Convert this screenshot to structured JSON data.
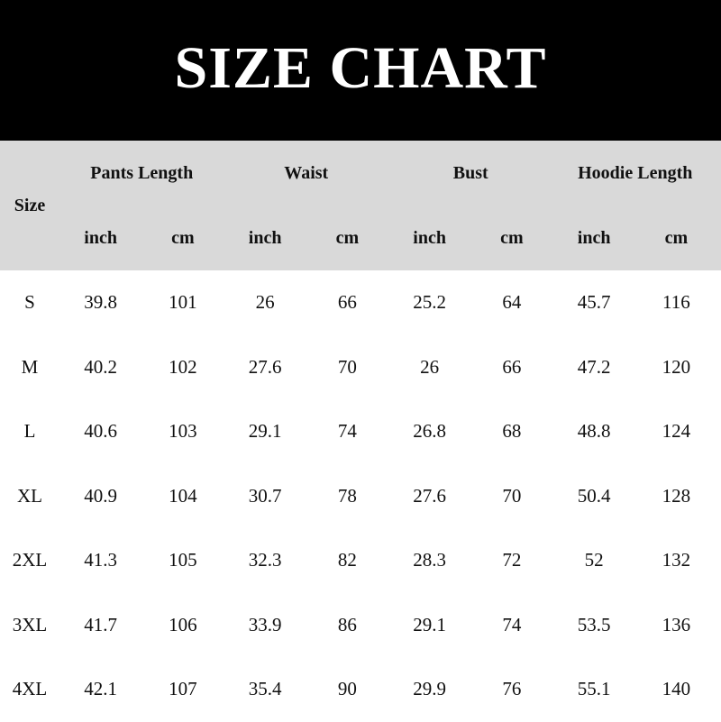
{
  "title": "SIZE CHART",
  "header": {
    "size_label": "Size",
    "groups": [
      "Pants Length",
      "Waist",
      "Bust",
      "Hoodie Length"
    ],
    "units": [
      "inch",
      "cm",
      "inch",
      "cm",
      "inch",
      "cm",
      "inch",
      "cm"
    ]
  },
  "rows": [
    [
      "S",
      "39.8",
      "101",
      "26",
      "66",
      "25.2",
      "64",
      "45.7",
      "116"
    ],
    [
      "M",
      "40.2",
      "102",
      "27.6",
      "70",
      "26",
      "66",
      "47.2",
      "120"
    ],
    [
      "L",
      "40.6",
      "103",
      "29.1",
      "74",
      "26.8",
      "68",
      "48.8",
      "124"
    ],
    [
      "XL",
      "40.9",
      "104",
      "30.7",
      "78",
      "27.6",
      "70",
      "50.4",
      "128"
    ],
    [
      "2XL",
      "41.3",
      "105",
      "32.3",
      "82",
      "28.3",
      "72",
      "52",
      "132"
    ],
    [
      "3XL",
      "41.7",
      "106",
      "33.9",
      "86",
      "29.1",
      "74",
      "53.5",
      "136"
    ],
    [
      "4XL",
      "42.1",
      "107",
      "35.4",
      "90",
      "29.9",
      "76",
      "55.1",
      "140"
    ]
  ],
  "colors": {
    "title_bg": "#000000",
    "header_bg": "#d9d9d9"
  }
}
